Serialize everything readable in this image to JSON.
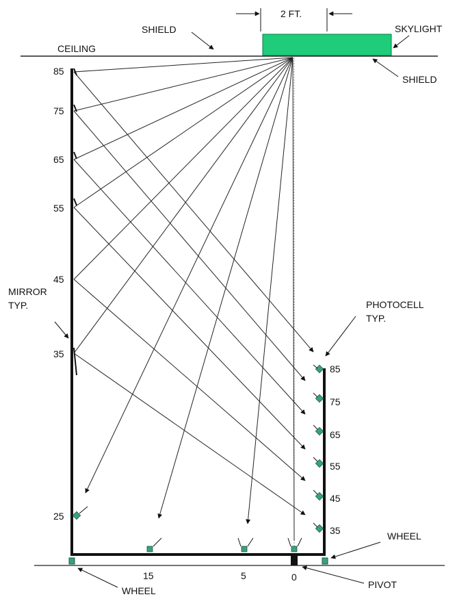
{
  "labels": {
    "width_dim": "2 FT.",
    "shield_left": "SHIELD",
    "skylight": "SKYLIGHT",
    "ceiling": "CEILING",
    "shield_right": "SHIELD",
    "mirror": [
      "MIRROR",
      "TYP."
    ],
    "photocell": [
      "PHOTOCELL",
      "TYP."
    ],
    "wheel_right": "WHEEL",
    "wheel_bottom": "WHEEL",
    "pivot": "PIVOT"
  },
  "mirror_angles": [
    "85",
    "75",
    "65",
    "55",
    "45",
    "35",
    "25"
  ],
  "photocell_angles": [
    "85",
    "75",
    "65",
    "55",
    "45",
    "35"
  ],
  "base_angles": [
    "15",
    "5",
    "0"
  ],
  "colors": {
    "skylight": "#1fcc7a",
    "sensor": "#3aa17a",
    "line": "#111111",
    "ceiling": "#222222"
  }
}
